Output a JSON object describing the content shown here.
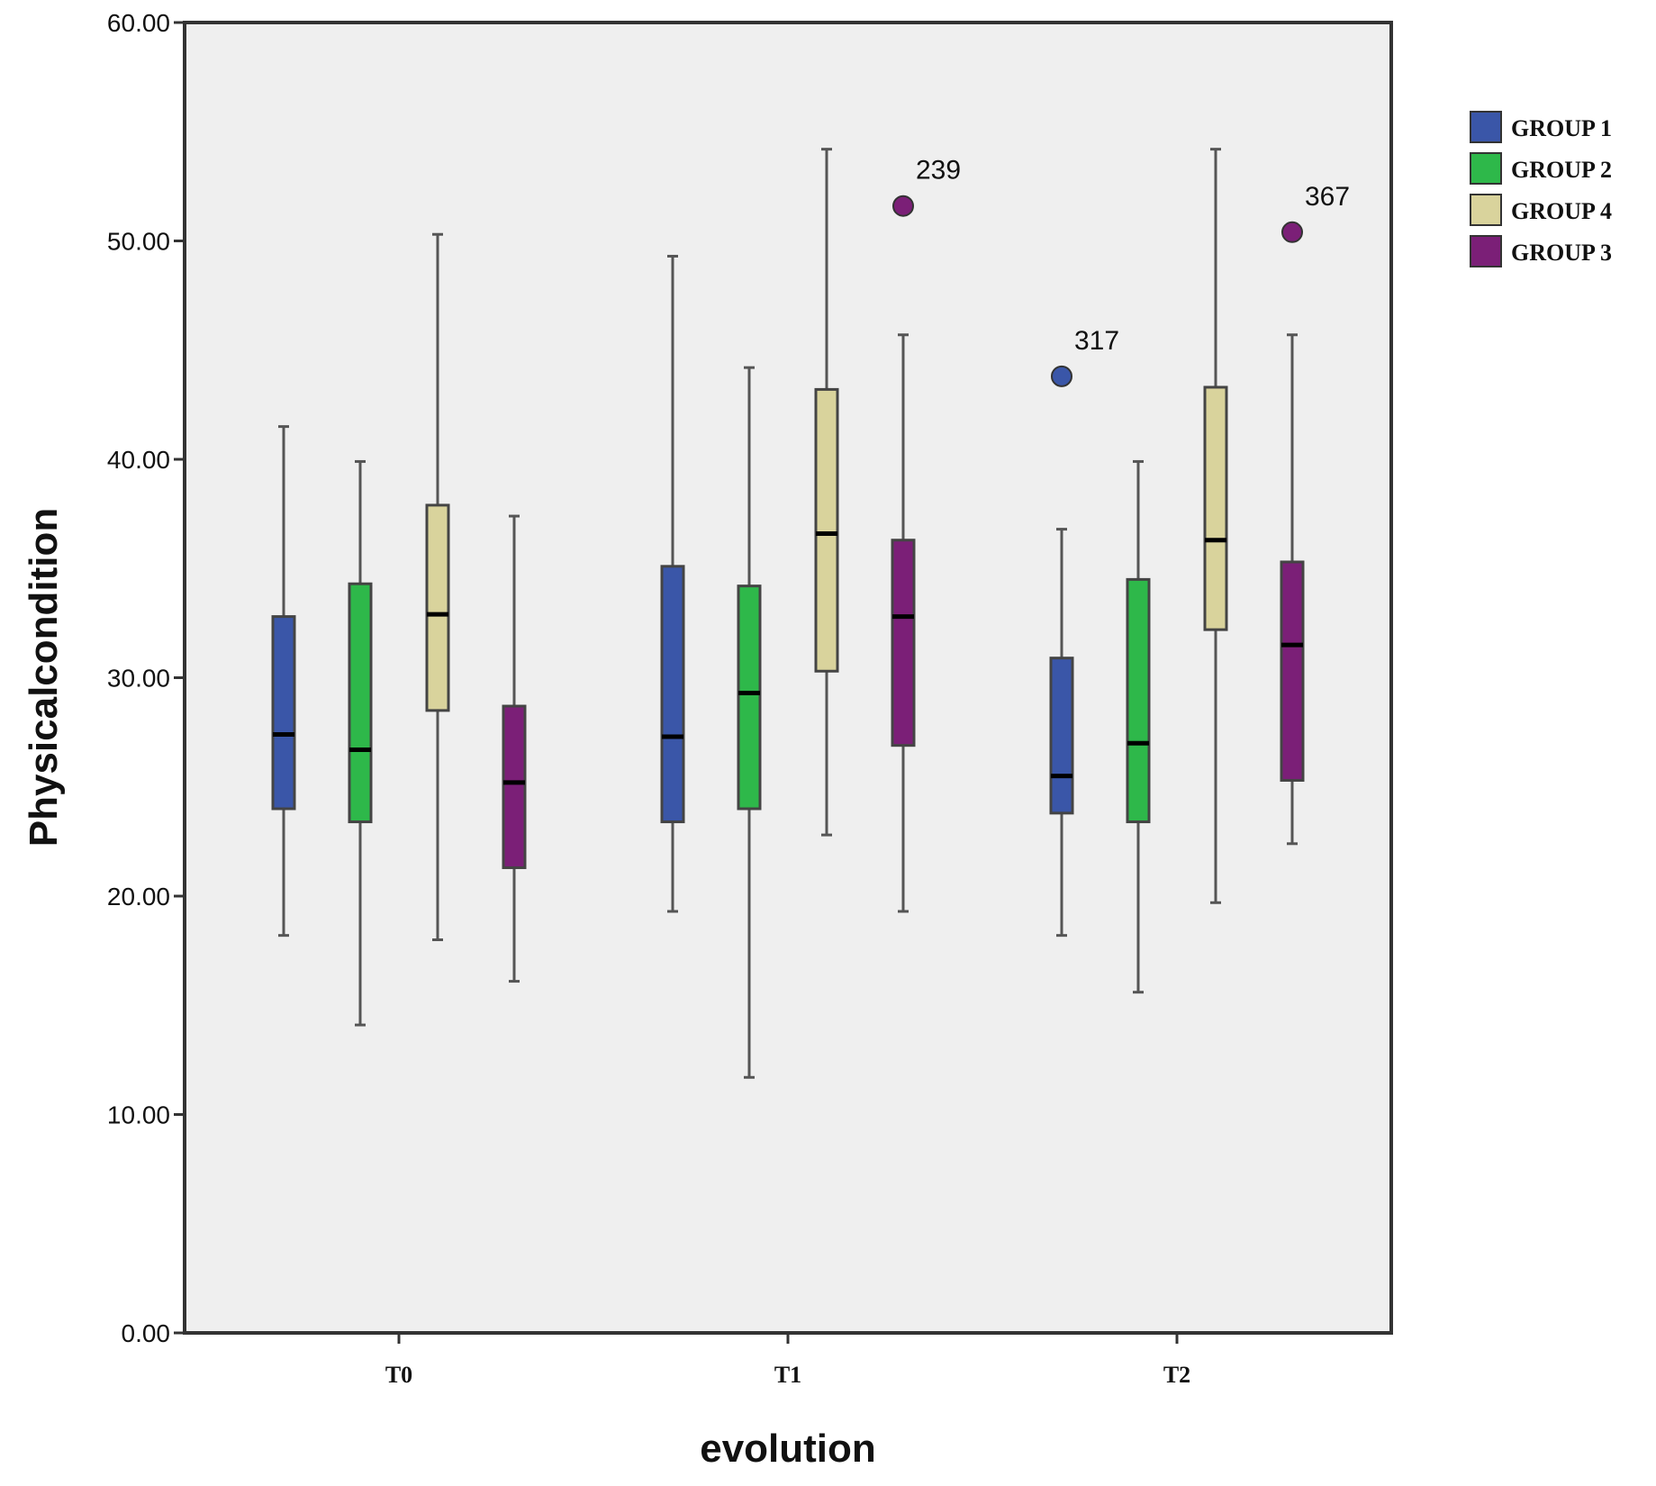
{
  "chart_data": {
    "type": "boxplot",
    "xlabel": "evolution",
    "ylabel": "Physicalcondition",
    "ylim": [
      0,
      60
    ],
    "y_ticks": [
      "0.00",
      "10.00",
      "20.00",
      "30.00",
      "40.00",
      "50.00",
      "60.00"
    ],
    "y_tick_values": [
      0,
      10,
      20,
      30,
      40,
      50,
      60
    ],
    "categories": [
      "T0",
      "T1",
      "T2"
    ],
    "legend_position": "right",
    "series": [
      {
        "name": "GROUP 1",
        "color": "#3a56a8",
        "boxes": [
          {
            "min": 18.2,
            "q1": 24.0,
            "median": 27.4,
            "q3": 32.8,
            "max": 41.5
          },
          {
            "min": 19.3,
            "q1": 23.4,
            "median": 27.3,
            "q3": 35.1,
            "max": 49.3
          },
          {
            "min": 18.2,
            "q1": 23.8,
            "median": 25.5,
            "q3": 30.9,
            "max": 36.8,
            "outliers": [
              {
                "value": 43.8,
                "label": "317"
              }
            ]
          }
        ]
      },
      {
        "name": "GROUP 2",
        "color": "#2eb84a",
        "boxes": [
          {
            "min": 14.1,
            "q1": 23.4,
            "median": 26.7,
            "q3": 34.3,
            "max": 39.9
          },
          {
            "min": 11.7,
            "q1": 24.0,
            "median": 29.3,
            "q3": 34.2,
            "max": 44.2
          },
          {
            "min": 15.6,
            "q1": 23.4,
            "median": 27.0,
            "q3": 34.5,
            "max": 39.9
          }
        ]
      },
      {
        "name": "GROUP 4",
        "color": "#d9d39c",
        "boxes": [
          {
            "min": 18.0,
            "q1": 28.5,
            "median": 32.9,
            "q3": 37.9,
            "max": 50.3
          },
          {
            "min": 22.8,
            "q1": 30.3,
            "median": 36.6,
            "q3": 43.2,
            "max": 54.2
          },
          {
            "min": 19.7,
            "q1": 32.2,
            "median": 36.3,
            "q3": 43.3,
            "max": 54.2
          }
        ]
      },
      {
        "name": "GROUP 3",
        "color": "#7b1f77",
        "boxes": [
          {
            "min": 16.1,
            "q1": 21.3,
            "median": 25.2,
            "q3": 28.7,
            "max": 37.4
          },
          {
            "min": 19.3,
            "q1": 26.9,
            "median": 32.8,
            "q3": 36.3,
            "max": 45.7,
            "outliers": [
              {
                "value": 51.6,
                "label": "239"
              }
            ]
          },
          {
            "min": 22.4,
            "q1": 25.3,
            "median": 31.5,
            "q3": 35.3,
            "max": 45.7,
            "outliers": [
              {
                "value": 50.4,
                "label": "367"
              }
            ]
          }
        ]
      }
    ]
  }
}
